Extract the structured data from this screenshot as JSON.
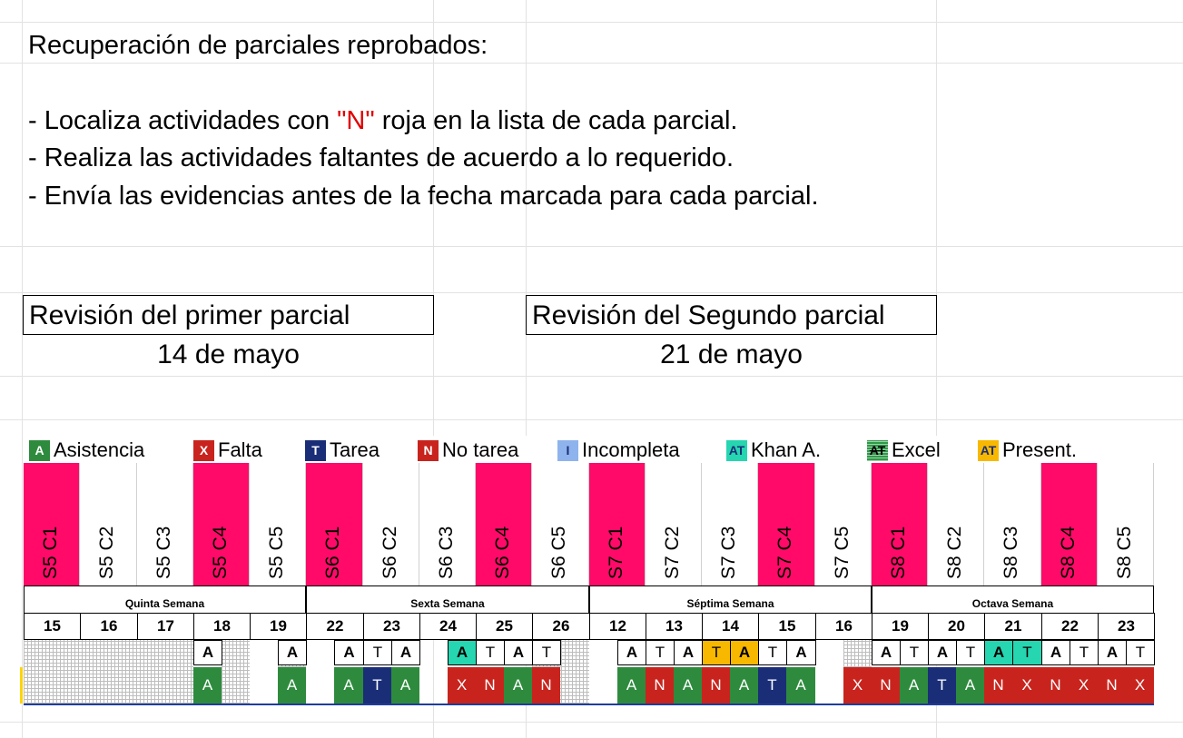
{
  "instructions": {
    "title": "Recuperación de parciales reprobados:",
    "bullet1_before": "- Localiza actividades con ",
    "bullet1_highlight": "\"N\"",
    "bullet1_after": " roja en la lista de cada parcial.",
    "bullet2": "- Realiza las actividades faltantes de acuerdo a lo requerido.",
    "bullet3": "- Envía las evidencias antes de la fecha marcada para cada parcial."
  },
  "review": {
    "first": {
      "label": "Revisión del primer parcial",
      "date": "14 de mayo"
    },
    "second": {
      "label": "Revisión del Segundo parcial",
      "date": "21 de mayo"
    }
  },
  "legend": [
    {
      "code": "A",
      "label": "Asistencia",
      "bg": "#2e8b3e",
      "fg": "#ffffff",
      "icon": "asistencia-icon"
    },
    {
      "code": "X",
      "label": "Falta",
      "bg": "#c8241d",
      "fg": "#ffffff",
      "icon": "falta-icon"
    },
    {
      "code": "T",
      "label": "Tarea",
      "bg": "#1a2e78",
      "fg": "#ffffff",
      "icon": "tarea-icon"
    },
    {
      "code": "N",
      "label": "No tarea",
      "bg": "#c8241d",
      "fg": "#ffffff",
      "icon": "no-tarea-icon"
    },
    {
      "code": "I",
      "label": "Incompleta",
      "bg": "#8fb3ec",
      "fg": "#1a2e78",
      "icon": "incompleta-icon"
    },
    {
      "code": "AT",
      "label": "Khan A.",
      "bg": "#26d6b0",
      "fg": "#1a2e78",
      "icon": "khan-icon"
    },
    {
      "code": "AT",
      "label": "Excel",
      "bg": "#2f9a48",
      "fg": "#000000",
      "icon": "excel-icon"
    },
    {
      "code": "AT",
      "label": "Present.",
      "bg": "#f8b800",
      "fg": "#1a2e78",
      "icon": "present-icon"
    }
  ],
  "sessions": [
    "S5 C1",
    "S5 C2",
    "S5 C3",
    "S5 C4",
    "S5 C5",
    "S6 C1",
    "S6 C2",
    "S6 C3",
    "S6 C4",
    "S6 C5",
    "S7 C1",
    "S7 C2",
    "S7 C3",
    "S7 C4",
    "S7 C5",
    "S8 C1",
    "S8 C2",
    "S8 C3",
    "S8 C4",
    "S8 C5"
  ],
  "session_highlight_color": "#ff0a68",
  "weeks": [
    "Quinta Semana",
    "Sexta Semana",
    "Séptima Semana",
    "Octava Semana"
  ],
  "days": [
    "15",
    "16",
    "17",
    "18",
    "19",
    "22",
    "23",
    "24",
    "25",
    "26",
    "12",
    "13",
    "14",
    "15",
    "16",
    "19",
    "20",
    "21",
    "22",
    "23"
  ],
  "header_row": [
    "",
    "",
    "",
    "",
    "",
    "",
    "",
    "A",
    "",
    "",
    "A",
    "",
    "A",
    "T",
    "A",
    "",
    "A",
    "T",
    "A",
    "T",
    "",
    "",
    "A",
    "T",
    "A",
    "T",
    "A",
    "T",
    "A",
    "",
    "",
    "A",
    "T",
    "A",
    "T",
    "A",
    "T",
    "A",
    "T",
    "A",
    "T"
  ],
  "status_row": [
    "",
    "",
    "",
    "",
    "",
    "",
    "",
    "A",
    "",
    "",
    "A",
    "",
    "A",
    "T",
    "A",
    "",
    "X",
    "N",
    "A",
    "N",
    "",
    "",
    "A",
    "N",
    "A",
    "N",
    "A",
    "T",
    "A",
    "",
    "X",
    "N",
    "A",
    "T",
    "A",
    "N",
    "X",
    "N",
    "X",
    "N",
    "X",
    "N"
  ],
  "colors": {
    "green": "#2e8b3e",
    "red": "#c8241d",
    "navy": "#1a2e78",
    "teal": "#26d6b0",
    "yellow": "#f8b800"
  }
}
